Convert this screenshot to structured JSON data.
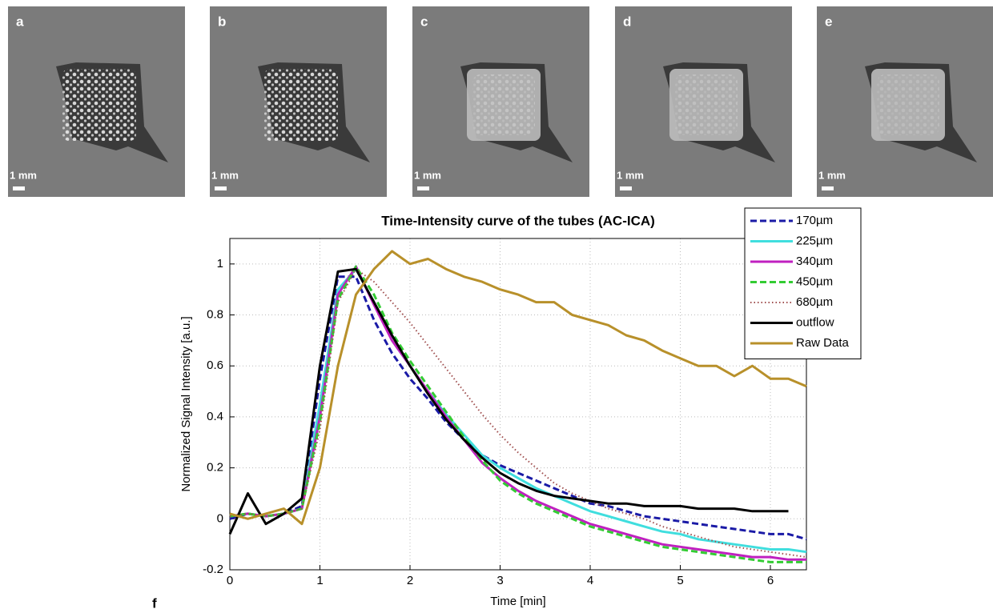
{
  "panels": [
    {
      "label": "a",
      "scale": "1 mm"
    },
    {
      "label": "b",
      "scale": "1 mm"
    },
    {
      "label": "c",
      "scale": "1 mm"
    },
    {
      "label": "d",
      "scale": "1 mm"
    },
    {
      "label": "e",
      "scale": "1 mm"
    }
  ],
  "chart_data": {
    "type": "line",
    "panel_label": "f",
    "title": "Time-Intensity curve of the tubes (AC-ICA)",
    "x_label": "Time [min]",
    "y_label": "Normalized Signal Intensity [a.u.]",
    "xlim": [
      0,
      6.4
    ],
    "ylim": [
      -0.2,
      1.1
    ],
    "xticks": [
      0,
      1,
      2,
      3,
      4,
      5,
      6
    ],
    "yticks": [
      -0.2,
      0,
      0.2,
      0.4,
      0.6,
      0.8,
      1
    ],
    "grid": true,
    "legend": "top-right",
    "x": [
      0,
      0.2,
      0.4,
      0.6,
      0.8,
      1.0,
      1.2,
      1.4,
      1.6,
      1.8,
      2.0,
      2.2,
      2.4,
      2.6,
      2.8,
      3.0,
      3.2,
      3.4,
      3.6,
      3.8,
      4.0,
      4.2,
      4.4,
      4.6,
      4.8,
      5.0,
      5.2,
      5.4,
      5.6,
      5.8,
      6.0,
      6.2,
      6.4
    ],
    "series": [
      {
        "name": "170µm",
        "color": "#1a1aa6",
        "style": "dashed",
        "values": [
          0,
          0.02,
          0.01,
          0.02,
          0.05,
          0.55,
          0.95,
          0.95,
          0.78,
          0.65,
          0.55,
          0.47,
          0.38,
          0.31,
          0.25,
          0.21,
          0.18,
          0.15,
          0.12,
          0.09,
          0.06,
          0.05,
          0.03,
          0.01,
          0,
          -0.01,
          -0.02,
          -0.03,
          -0.04,
          -0.05,
          -0.06,
          -0.06,
          -0.08
        ]
      },
      {
        "name": "225µm",
        "color": "#40dede",
        "style": "solid",
        "values": [
          0.01,
          0.02,
          0.01,
          0.02,
          0.04,
          0.45,
          0.9,
          0.98,
          0.85,
          0.7,
          0.6,
          0.5,
          0.41,
          0.33,
          0.25,
          0.2,
          0.16,
          0.12,
          0.09,
          0.06,
          0.03,
          0.01,
          -0.01,
          -0.03,
          -0.05,
          -0.06,
          -0.08,
          -0.09,
          -0.1,
          -0.11,
          -0.12,
          -0.12,
          -0.13
        ]
      },
      {
        "name": "340µm",
        "color": "#c020c0",
        "style": "solid",
        "values": [
          0.01,
          0.02,
          0.01,
          0.02,
          0.04,
          0.4,
          0.88,
          0.99,
          0.84,
          0.7,
          0.6,
          0.5,
          0.4,
          0.31,
          0.22,
          0.16,
          0.11,
          0.07,
          0.04,
          0.01,
          -0.02,
          -0.04,
          -0.06,
          -0.08,
          -0.1,
          -0.11,
          -0.12,
          -0.13,
          -0.14,
          -0.15,
          -0.15,
          -0.16,
          -0.16
        ]
      },
      {
        "name": "450µm",
        "color": "#33cc33",
        "style": "dashed",
        "values": [
          0.01,
          0.02,
          0.01,
          0.02,
          0.04,
          0.38,
          0.86,
          0.99,
          0.88,
          0.73,
          0.62,
          0.52,
          0.42,
          0.32,
          0.23,
          0.15,
          0.1,
          0.06,
          0.03,
          0,
          -0.03,
          -0.05,
          -0.07,
          -0.09,
          -0.11,
          -0.12,
          -0.13,
          -0.14,
          -0.15,
          -0.16,
          -0.17,
          -0.17,
          -0.17
        ]
      },
      {
        "name": "680µm",
        "color": "#a05050",
        "style": "dotted",
        "values": [
          0.01,
          0.02,
          0.01,
          0.02,
          0.04,
          0.35,
          0.85,
          0.98,
          0.93,
          0.85,
          0.77,
          0.68,
          0.59,
          0.5,
          0.41,
          0.33,
          0.26,
          0.2,
          0.14,
          0.1,
          0.07,
          0.04,
          0.02,
          0,
          -0.03,
          -0.05,
          -0.07,
          -0.09,
          -0.11,
          -0.12,
          -0.13,
          -0.14,
          -0.15
        ]
      },
      {
        "name": "outflow",
        "color": "#000000",
        "style": "solid",
        "values": [
          -0.06,
          0.1,
          -0.02,
          0.02,
          0.08,
          0.6,
          0.97,
          0.98,
          0.85,
          0.72,
          0.6,
          0.49,
          0.39,
          0.31,
          0.24,
          0.18,
          0.14,
          0.11,
          0.09,
          0.08,
          0.07,
          0.06,
          0.06,
          0.05,
          0.05,
          0.05,
          0.04,
          0.04,
          0.04,
          0.03,
          0.03,
          0.03,
          null
        ]
      },
      {
        "name": "Raw Data",
        "color": "#b8902a",
        "style": "solid",
        "values": [
          0.02,
          0,
          0.02,
          0.04,
          -0.02,
          0.2,
          0.6,
          0.88,
          0.98,
          1.05,
          1.0,
          1.02,
          0.98,
          0.95,
          0.93,
          0.9,
          0.88,
          0.85,
          0.85,
          0.8,
          0.78,
          0.76,
          0.72,
          0.7,
          0.66,
          0.63,
          0.6,
          0.6,
          0.56,
          0.6,
          0.55,
          0.55,
          0.52
        ]
      }
    ]
  }
}
